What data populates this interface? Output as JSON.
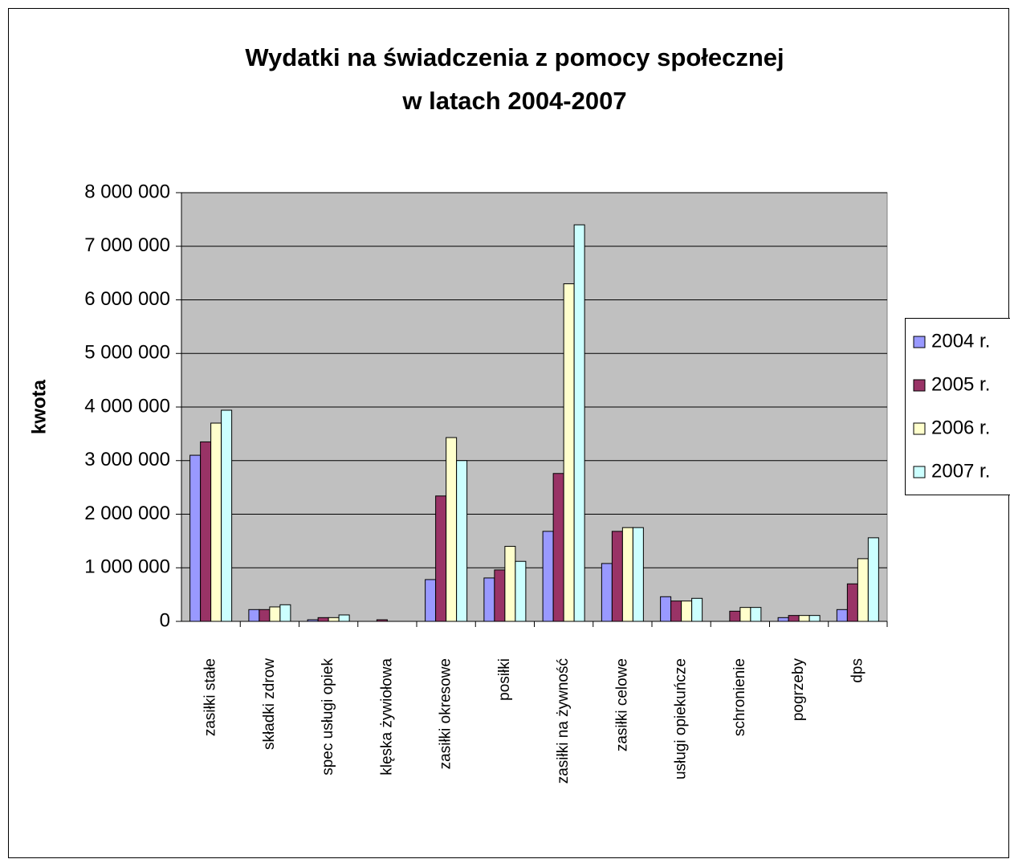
{
  "chart_data": {
    "type": "bar",
    "title": [
      "Wydatki na świadczenia z pomocy społecznej",
      "w latach 2004-2007"
    ],
    "y_label": "kwota",
    "categories": [
      "zasiłki stałe",
      "składki zdrow",
      "spec usługi opiek",
      "klęska żywiołowa",
      "zasiłki okresowe",
      "posiłki",
      "zasiłki na żywność",
      "zasiłki celowe",
      "usługi opiekuńcze",
      "schronienie",
      "pogrzeby",
      "dps"
    ],
    "series": [
      {
        "name": "2004 r.",
        "color": "#9999ff",
        "values": [
          3100000,
          220000,
          30000,
          0,
          780000,
          810000,
          1680000,
          1080000,
          460000,
          0,
          70000,
          220000
        ]
      },
      {
        "name": "2005 r.",
        "color": "#993366",
        "values": [
          3350000,
          220000,
          70000,
          30000,
          2340000,
          960000,
          2760000,
          1680000,
          380000,
          190000,
          110000,
          700000
        ]
      },
      {
        "name": "2006 r.",
        "color": "#ffffcc",
        "values": [
          3700000,
          270000,
          70000,
          0,
          3430000,
          1400000,
          6300000,
          1750000,
          380000,
          260000,
          110000,
          1170000
        ]
      },
      {
        "name": "2007 r.",
        "color": "#ccffff",
        "values": [
          3940000,
          310000,
          120000,
          0,
          3000000,
          1120000,
          7400000,
          1750000,
          430000,
          260000,
          110000,
          1560000
        ]
      }
    ],
    "ylim": [
      0,
      8000000
    ],
    "yticks": [
      0,
      {
        "value": 1000000,
        "label": "1 000 000"
      },
      {
        "value": 2000000,
        "label": "2 000 000"
      },
      {
        "value": 3000000,
        "label": "3 000 000"
      },
      {
        "value": 4000000,
        "label": "4 000 000"
      },
      {
        "value": 5000000,
        "label": "5 000 000"
      },
      {
        "value": 6000000,
        "label": "6 000 000"
      },
      {
        "value": 7000000,
        "label": "7 000 000"
      },
      {
        "value": 8000000,
        "label": "8 000 000"
      }
    ],
    "grid": true,
    "legend": "right",
    "plot_background": "#c0c0c0"
  }
}
